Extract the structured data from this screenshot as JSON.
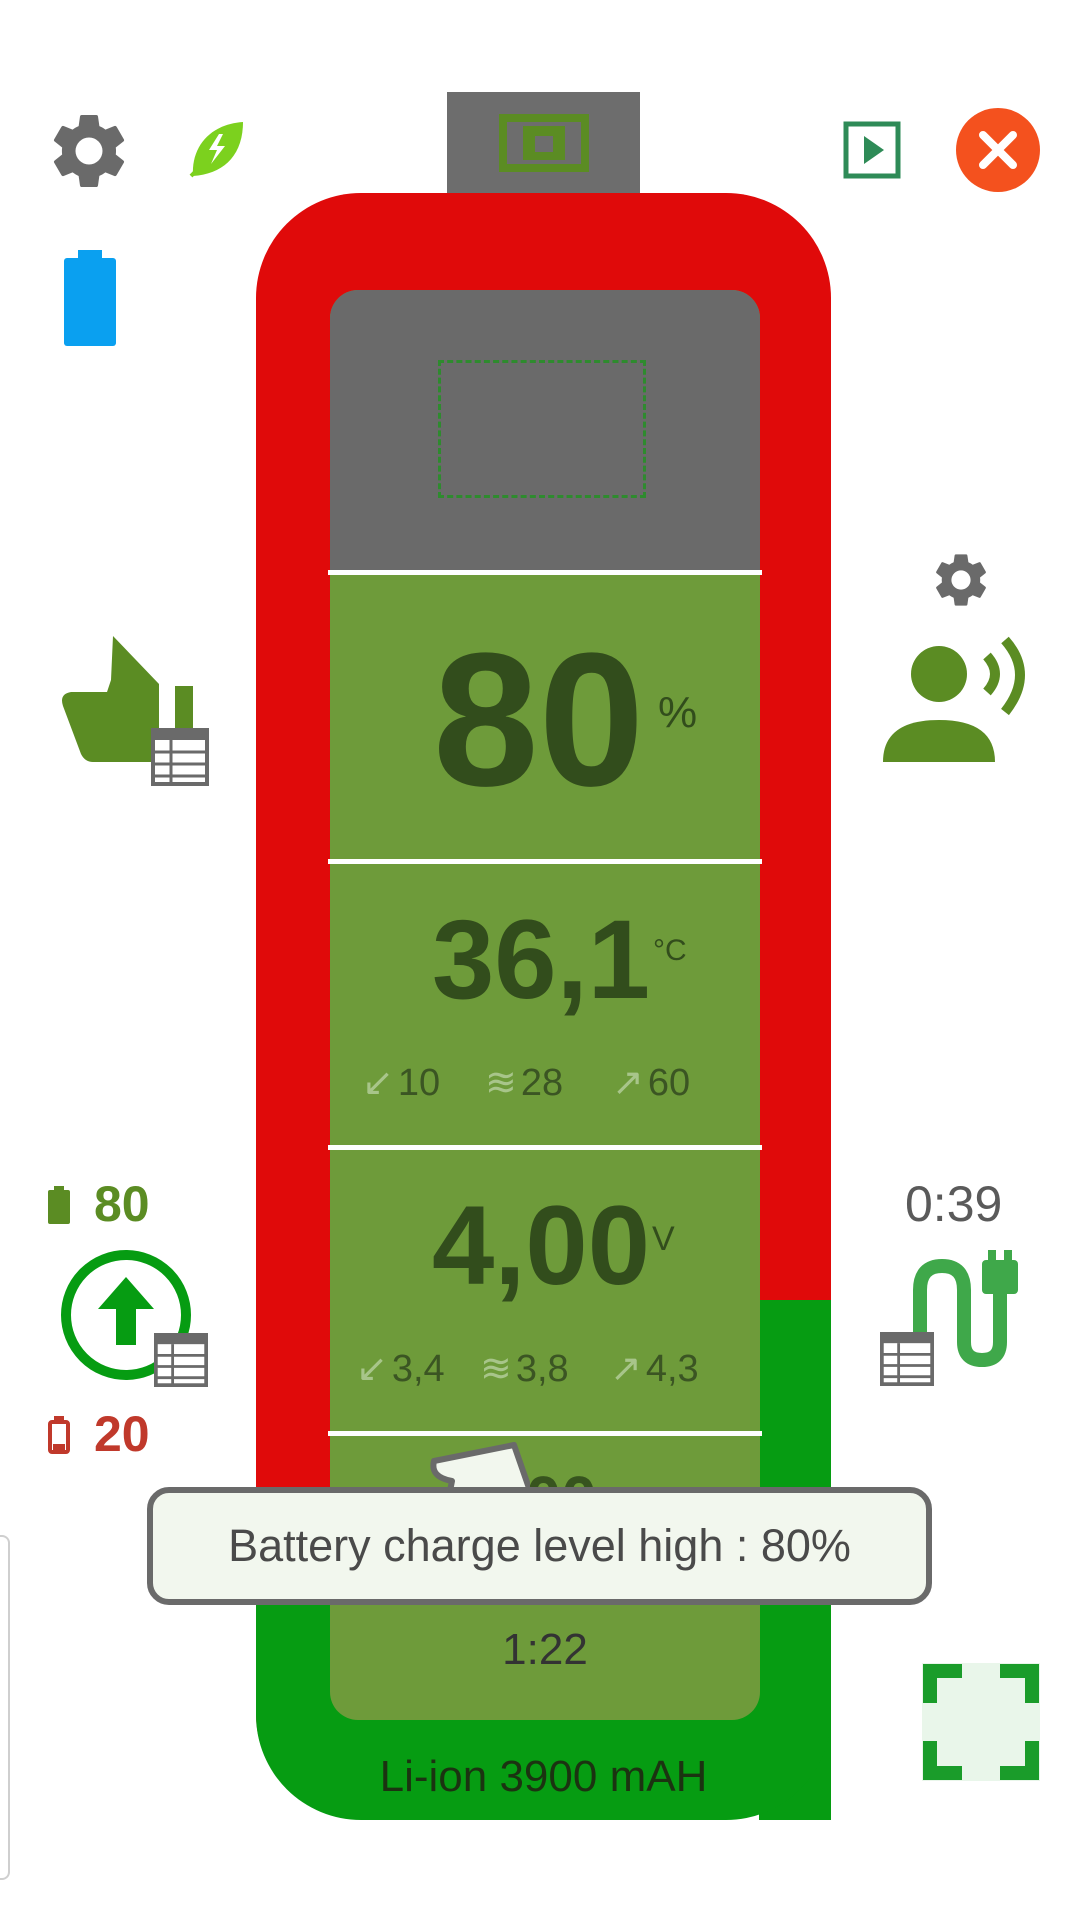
{
  "charge": {
    "value": "80",
    "unit": "%"
  },
  "temperature": {
    "value": "36,1",
    "unit": "°C",
    "min": "10",
    "avg": "28",
    "max": "60"
  },
  "voltage": {
    "value": "4,00",
    "unit": "V",
    "min": "3,4",
    "avg": "3,8",
    "max": "4,3"
  },
  "hidden_value_partial": "000",
  "time_remaining": "1:22",
  "battery_type": "Li-ion 3900 mAH",
  "tooltip": "Battery charge level high : 80%",
  "left_panel": {
    "high_threshold": "80",
    "low_threshold": "20"
  },
  "right_panel": {
    "charge_time": "0:39"
  },
  "colors": {
    "battery_red": "#e00a0a",
    "battery_green": "#069c12",
    "panel_green": "#6e9b3a",
    "panel_gray": "#6a6a6a",
    "dark_text": "#324d1c",
    "close_orange": "#f4511e",
    "accent_green": "#5b8c23",
    "low_red": "#c0392b",
    "blue_battery": "#0aa0f0"
  },
  "icons": {
    "settings": "gear-icon",
    "eco": "leaf-icon",
    "play": "play-box-icon",
    "close": "close-icon",
    "battery_indicator": "battery-icon",
    "thumbs_up": "thumbs-up-icon",
    "table": "table-icon",
    "user_voice": "user-voice-icon",
    "small_gear": "gear-icon",
    "charge_upload": "upload-circle-icon",
    "charger_cable": "charger-plug-icon",
    "fullscreen": "fullscreen-icon"
  }
}
